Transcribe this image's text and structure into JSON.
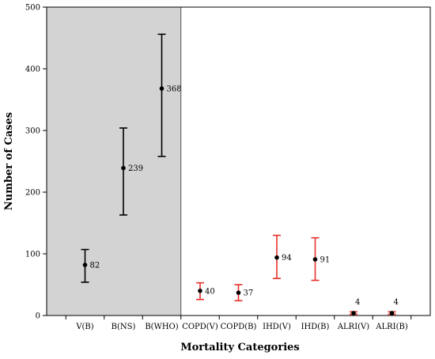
{
  "chart_data": {
    "type": "scatter",
    "xlabel": "Mortality Categories",
    "ylabel": "Number of Cases",
    "ylim": [
      0,
      500
    ],
    "yticks": [
      0,
      100,
      200,
      300,
      400,
      500
    ],
    "categories": [
      "V(B)",
      "B(NS)",
      "B(WHO)",
      "COPD(V)",
      "COPD(B)",
      "IHD(V)",
      "IHD(B)",
      "ALRI(V)",
      "ALRI(B)"
    ],
    "values": [
      82,
      239,
      368,
      40,
      37,
      94,
      91,
      4,
      4
    ],
    "error_low": [
      54,
      163,
      258,
      26,
      24,
      60,
      57,
      2,
      2
    ],
    "error_high": [
      107,
      304,
      456,
      53,
      50,
      130,
      126,
      6,
      6
    ],
    "error_colors": [
      "#000000",
      "#000000",
      "#000000",
      "#e8302a",
      "#e8302a",
      "#e8302a",
      "#e8302a",
      "#e8302a",
      "#e8302a"
    ],
    "shaded_region": {
      "from_category": "V(B)",
      "to_category": "B(WHO)",
      "color": "#d3d3d3"
    },
    "point_color": "#000000",
    "grid": false
  }
}
